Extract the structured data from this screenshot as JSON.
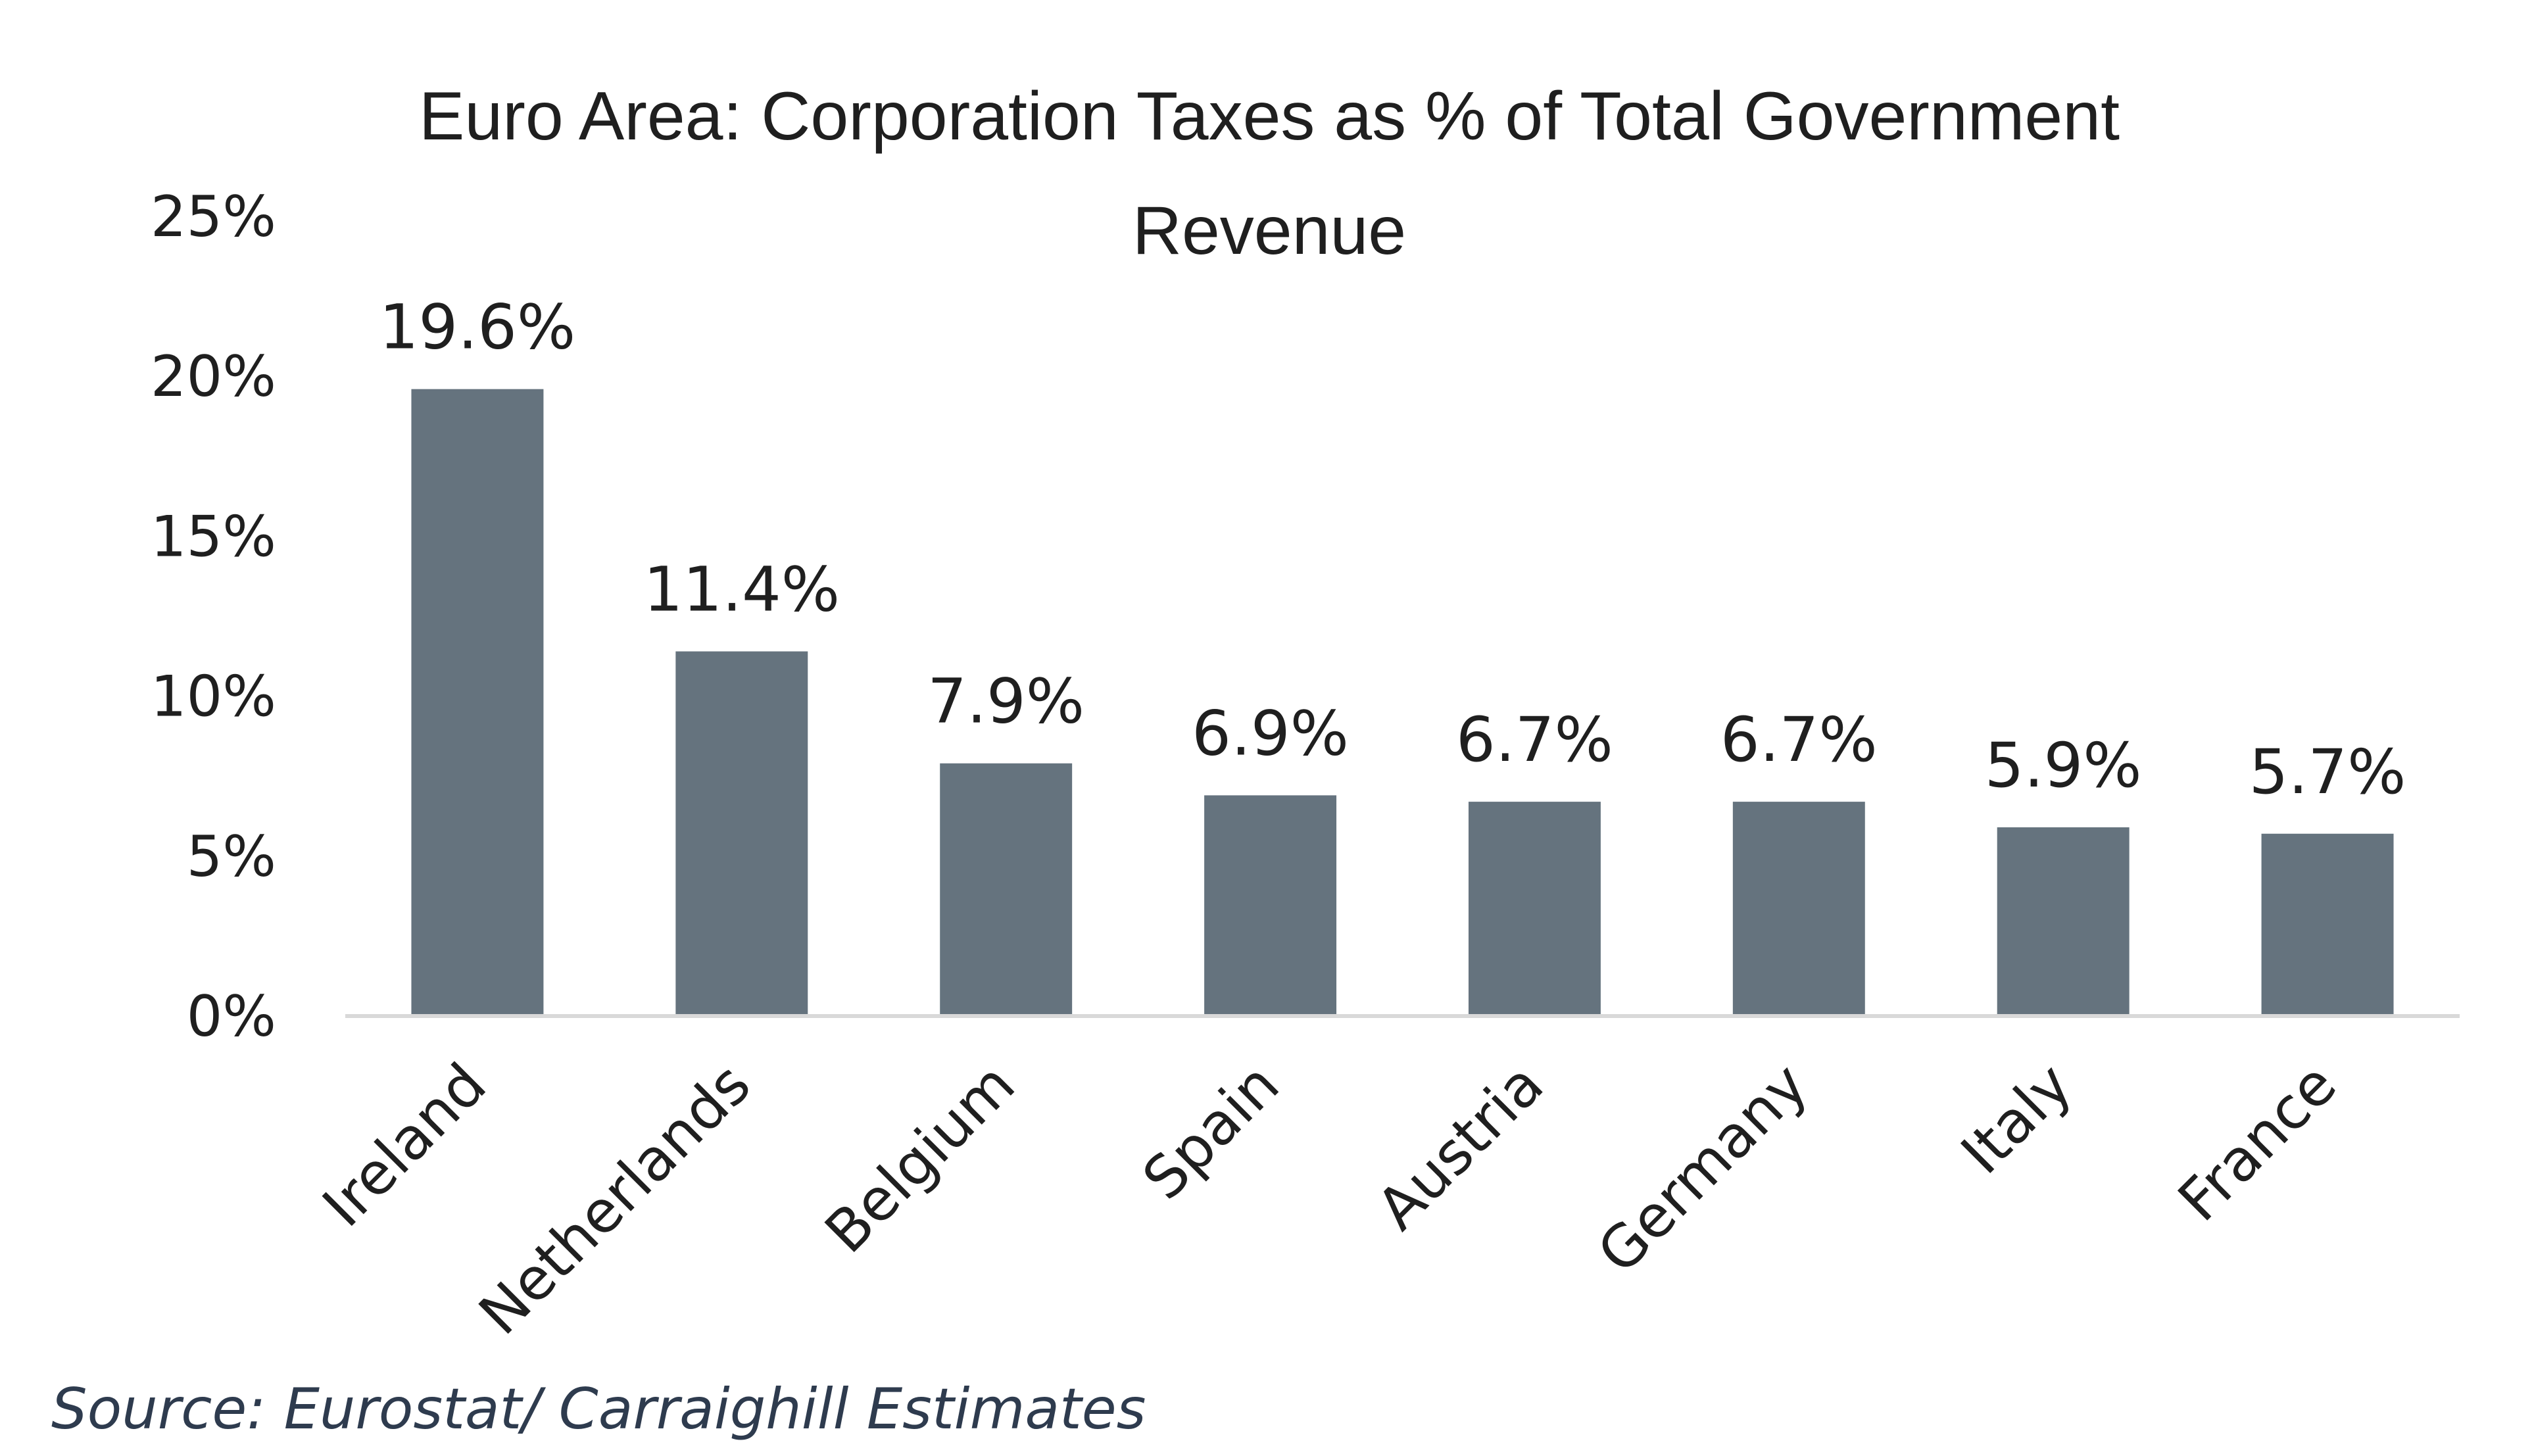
{
  "chart_data": {
    "type": "bar",
    "title_lines": [
      "Euro Area: Corporation Taxes as % of Total Government",
      "Revenue"
    ],
    "categories": [
      "Ireland",
      "Netherlands",
      "Belgium",
      "Spain",
      "Austria",
      "Germany",
      "Italy",
      "France"
    ],
    "values": [
      19.6,
      11.4,
      7.9,
      6.9,
      6.7,
      6.7,
      5.9,
      5.7
    ],
    "data_labels": [
      "19.6%",
      "11.4%",
      "7.9%",
      "6.9%",
      "6.7%",
      "6.7%",
      "5.9%",
      "5.7%"
    ],
    "yticks": [
      0,
      5,
      10,
      15,
      20,
      25
    ],
    "ytick_labels": [
      "0%",
      "5%",
      "10%",
      "15%",
      "20%",
      "25%"
    ],
    "ylim": [
      0,
      25
    ],
    "xlabel": "",
    "ylabel": "",
    "grid": false,
    "bar_color": "#65737e",
    "axis_color": "#d9d9d9"
  },
  "source": "Source: Eurostat/ Carraighill Estimates"
}
